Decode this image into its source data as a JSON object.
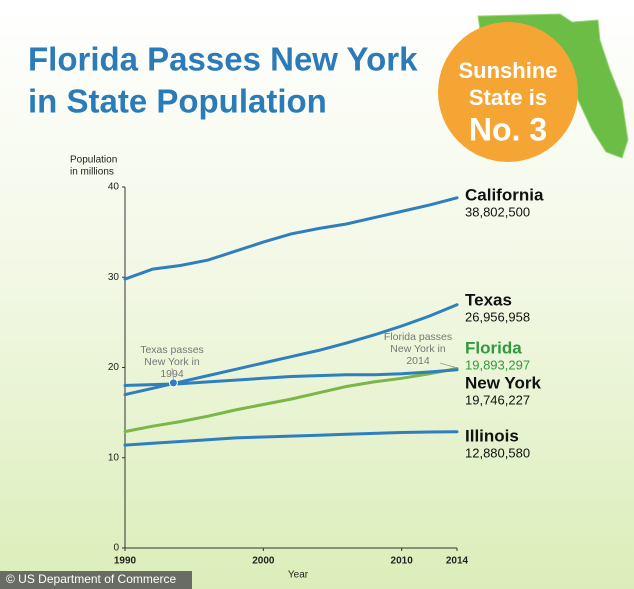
{
  "chart_data": {
    "type": "line",
    "title_lines": [
      "Florida Passes New York",
      "in State Population"
    ],
    "badge_lines": [
      "Sunshine",
      "State is",
      "No. 3"
    ],
    "y_label_lines": [
      "Population",
      "in millions"
    ],
    "x_label": "Year",
    "source": "© US Department of Commerce",
    "x": [
      1990,
      1992,
      1994,
      1996,
      1998,
      2000,
      2002,
      2004,
      2006,
      2008,
      2010,
      2012,
      2014
    ],
    "xlim": [
      1990,
      2014
    ],
    "xticks": [
      1990,
      2000,
      2010,
      2014
    ],
    "ylim": [
      0,
      40
    ],
    "yticks": [
      0,
      10,
      20,
      30,
      40
    ],
    "series": [
      {
        "name": "California",
        "color": "#2f7fbe",
        "label_color": "#111111",
        "values": [
          29.8,
          30.9,
          31.3,
          31.9,
          32.9,
          33.9,
          34.8,
          35.4,
          35.9,
          36.6,
          37.3,
          38.0,
          38.8025
        ],
        "value_labels": [
          null,
          null,
          null,
          null,
          null,
          null,
          null,
          null,
          null,
          null,
          null,
          null,
          "38,802,500"
        ]
      },
      {
        "name": "Texas",
        "color": "#2f7fbe",
        "label_color": "#111111",
        "values": [
          17.0,
          17.7,
          18.4,
          19.1,
          19.8,
          20.5,
          21.2,
          21.9,
          22.7,
          23.6,
          24.6,
          25.7,
          26.956958
        ],
        "value_labels": [
          null,
          null,
          null,
          null,
          null,
          null,
          null,
          null,
          null,
          null,
          null,
          null,
          "26,956,958"
        ]
      },
      {
        "name": "Florida",
        "color": "#7ab648",
        "label_color": "#2f9a3c",
        "values": [
          12.9,
          13.5,
          14.0,
          14.6,
          15.3,
          15.9,
          16.5,
          17.2,
          17.9,
          18.4,
          18.8,
          19.3,
          19.893297
        ],
        "value_labels": [
          null,
          null,
          null,
          null,
          null,
          null,
          null,
          null,
          null,
          null,
          null,
          null,
          "19,893,297"
        ]
      },
      {
        "name": "New York",
        "color": "#2f7fbe",
        "label_color": "#111111",
        "values": [
          18.0,
          18.1,
          18.2,
          18.4,
          18.6,
          18.8,
          19.0,
          19.1,
          19.2,
          19.2,
          19.3,
          19.5,
          19.746227
        ],
        "value_labels": [
          null,
          null,
          null,
          null,
          null,
          null,
          null,
          null,
          null,
          null,
          null,
          null,
          "19,746,227"
        ]
      },
      {
        "name": "Illinois",
        "color": "#2f7fbe",
        "label_color": "#111111",
        "values": [
          11.4,
          11.6,
          11.8,
          12.0,
          12.2,
          12.3,
          12.4,
          12.5,
          12.6,
          12.7,
          12.8,
          12.85,
          12.88058
        ],
        "value_labels": [
          null,
          null,
          null,
          null,
          null,
          null,
          null,
          null,
          null,
          null,
          null,
          null,
          "12,880,580"
        ]
      }
    ],
    "annotations": [
      {
        "lines": [
          "Texas passes",
          "New York in",
          "1994"
        ],
        "x": 1993.5,
        "y": 18.3
      },
      {
        "lines": [
          "Florida passes",
          "New York in",
          "2014"
        ],
        "x": 2014,
        "y": 19.8
      }
    ]
  }
}
